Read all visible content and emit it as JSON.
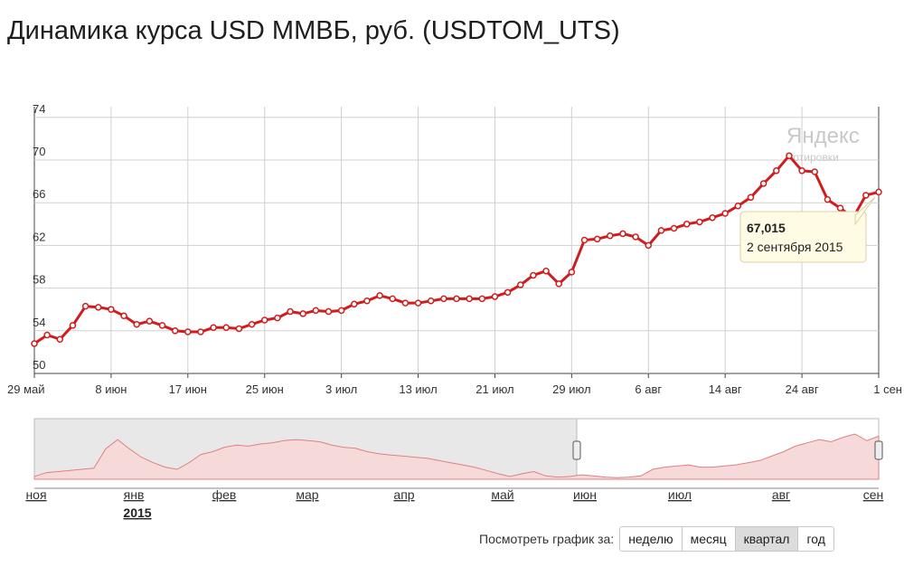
{
  "title": "Динамика курса USD ММВБ, руб. (USDTOM_UTS)",
  "watermark": {
    "line1": "Яндекс",
    "line2": "котировки"
  },
  "colors": {
    "line": "#d01c1c",
    "grid": "#d0d0d0",
    "nav_fill": "#f6dada",
    "nav_selection": "#e8e8e8"
  },
  "chart_data": {
    "type": "line",
    "y_ticks": [
      "74",
      "70",
      "66",
      "62",
      "58",
      "54",
      "50"
    ],
    "y_values": [
      74,
      70,
      66,
      62,
      58,
      54,
      50
    ],
    "ylim": [
      50,
      75
    ],
    "x_tick_labels": [
      "29 май",
      "8 июн",
      "17 июн",
      "25 июн",
      "3 июл",
      "13 июл",
      "21 июл",
      "29 июл",
      "6 авг",
      "14 авг",
      "24 авг",
      "1 сен"
    ],
    "series": [
      {
        "values": [
          52.8,
          53.6,
          53.2,
          54.5,
          56.3,
          56.2,
          56.0,
          55.4,
          54.6,
          54.9,
          54.5,
          54.0,
          53.9,
          53.9,
          54.3,
          54.3,
          54.2,
          54.6,
          55.0,
          55.2,
          55.8,
          55.6,
          55.9,
          55.8,
          55.9,
          56.5,
          56.8,
          57.3,
          57.0,
          56.6,
          56.6,
          56.8,
          57.0,
          57.0,
          57.0,
          57.0,
          57.2,
          57.6,
          58.3,
          59.2,
          59.6,
          58.4,
          59.5,
          62.5,
          62.6,
          62.9,
          63.1,
          62.8,
          62.0,
          63.4,
          63.6,
          64.0,
          64.2,
          64.6,
          65.0,
          65.7,
          66.5,
          67.8,
          69.0,
          70.4,
          69.0,
          68.9,
          66.3,
          65.5,
          64.6,
          66.7,
          67.0
        ]
      }
    ],
    "tooltip": {
      "value": "67,015",
      "date": "2 сентября 2015"
    },
    "navigator": {
      "x_labels": [
        "ноя",
        "янв",
        "фев",
        "мар",
        "апр",
        "май",
        "июн",
        "июл",
        "авг",
        "сен"
      ],
      "year_label": "2015",
      "values": [
        0.05,
        0.12,
        0.14,
        0.16,
        0.18,
        0.2,
        0.55,
        0.72,
        0.55,
        0.4,
        0.3,
        0.22,
        0.18,
        0.3,
        0.45,
        0.5,
        0.58,
        0.62,
        0.6,
        0.64,
        0.66,
        0.7,
        0.72,
        0.7,
        0.68,
        0.62,
        0.58,
        0.56,
        0.5,
        0.46,
        0.44,
        0.42,
        0.4,
        0.38,
        0.34,
        0.3,
        0.26,
        0.22,
        0.16,
        0.1,
        0.05,
        0.1,
        0.14,
        0.06,
        0.04,
        0.05,
        0.08,
        0.06,
        0.04,
        0.03,
        0.04,
        0.06,
        0.18,
        0.22,
        0.24,
        0.26,
        0.22,
        0.22,
        0.24,
        0.26,
        0.3,
        0.34,
        0.42,
        0.5,
        0.6,
        0.66,
        0.72,
        0.68,
        0.76,
        0.82,
        0.7,
        0.78
      ]
    }
  },
  "period_selector": {
    "label": "Посмотреть график за:",
    "buttons": [
      "неделю",
      "месяц",
      "квартал",
      "год"
    ],
    "active": "квартал"
  }
}
